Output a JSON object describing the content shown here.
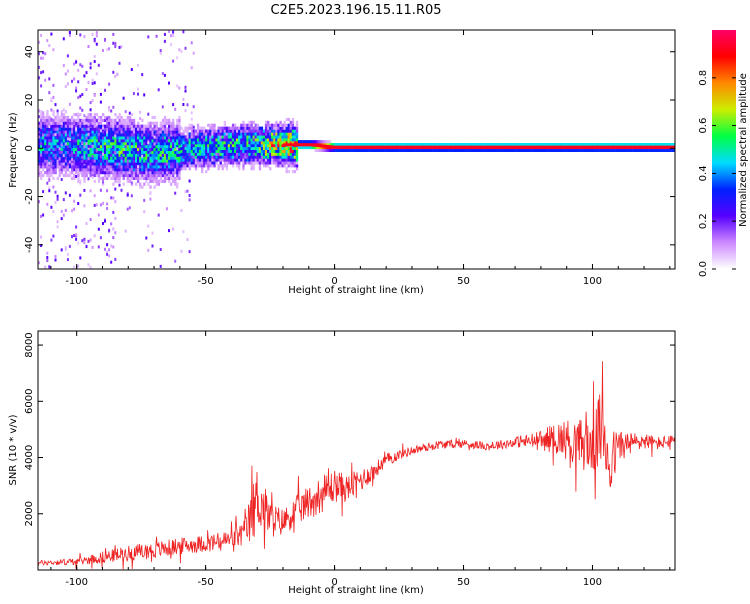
{
  "title": "C2E5.2023.196.15.11.R05",
  "chart_data": [
    {
      "type": "heatmap",
      "xlabel": "Height of straight line (km)",
      "ylabel": "Frequency (Hz)",
      "xlim": [
        -115,
        132
      ],
      "ylim": [
        -50,
        49
      ],
      "xticks": [
        "-100",
        "-50",
        "0",
        "50",
        "100"
      ],
      "xtick_values": [
        -100,
        -50,
        0,
        50,
        100
      ],
      "yticks": [
        "-40",
        "-20",
        "0",
        "20",
        "40"
      ],
      "ytick_values": [
        -40,
        -20,
        0,
        20,
        40
      ],
      "grid": false,
      "colorbar": {
        "label": "Normalized spectral amplitude",
        "range": [
          0,
          1
        ],
        "ticks": [
          "0.0",
          "0.2",
          "0.4",
          "0.6",
          "0.8"
        ],
        "tick_values": [
          0.0,
          0.2,
          0.4,
          0.6,
          0.8
        ],
        "colormap": [
          "#ffffff",
          "#cc88ff",
          "#5500ff",
          "#0022ff",
          "#00ddff",
          "#00ff44",
          "#ccee00",
          "#ff8800",
          "#ff0000",
          "#ff0066"
        ]
      },
      "ridge": [
        {
          "x": -110,
          "y": 1.5,
          "amplitude": 0.5
        },
        {
          "x": -90,
          "y": 0.5,
          "amplitude": 0.6
        },
        {
          "x": -70,
          "y": -2.0,
          "amplitude": 0.6
        },
        {
          "x": -50,
          "y": 0.5,
          "amplitude": 0.6
        },
        {
          "x": -35,
          "y": 1.5,
          "amplitude": 0.65
        },
        {
          "x": -20,
          "y": 1.5,
          "amplitude": 0.95
        },
        {
          "x": -10,
          "y": 1.5,
          "amplitude": 1.0
        },
        {
          "x": 0,
          "y": 0.5,
          "amplitude": 1.0
        },
        {
          "x": 50,
          "y": 0.5,
          "amplitude": 0.98
        },
        {
          "x": 100,
          "y": 0.5,
          "amplitude": 1.0
        },
        {
          "x": 130,
          "y": 0.5,
          "amplitude": 1.0
        }
      ]
    },
    {
      "type": "line",
      "xlabel": "Height of straight line (km)",
      "ylabel": "SNR (10 * v/v)",
      "xlim": [
        -115,
        132
      ],
      "ylim": [
        0,
        8500
      ],
      "xticks": [
        "-100",
        "-50",
        "0",
        "50",
        "100"
      ],
      "xtick_values": [
        -100,
        -50,
        0,
        50,
        100
      ],
      "yticks": [
        "2000",
        "4000",
        "6000",
        "8000"
      ],
      "ytick_values": [
        2000,
        4000,
        6000,
        8000
      ],
      "grid": false,
      "series": [
        {
          "color": "#ee2222",
          "x": [
            -115,
            -100,
            -90,
            -80,
            -70,
            -60,
            -50,
            -45,
            -40,
            -35,
            -32,
            -30,
            -28,
            -25,
            -20,
            -15,
            -10,
            -5,
            0,
            5,
            10,
            15,
            20,
            25,
            30,
            40,
            50,
            60,
            70,
            80,
            85,
            90,
            95,
            100,
            103,
            105,
            107,
            110,
            115,
            120,
            125,
            132
          ],
          "values": [
            250,
            300,
            450,
            600,
            700,
            850,
            950,
            1000,
            1100,
            1300,
            1900,
            2600,
            2300,
            1800,
            1700,
            2100,
            2400,
            2700,
            3000,
            2900,
            3200,
            3500,
            3900,
            4100,
            4250,
            4450,
            4500,
            4400,
            4550,
            4600,
            4700,
            4650,
            4500,
            4400,
            5000,
            4600,
            3800,
            4400,
            4500,
            4600,
            4500,
            4600
          ],
          "spread": [
            150,
            200,
            350,
            450,
            500,
            500,
            500,
            550,
            600,
            800,
            1700,
            1900,
            1600,
            1100,
            800,
            900,
            1000,
            1100,
            1000,
            800,
            700,
            500,
            400,
            300,
            250,
            250,
            250,
            250,
            300,
            600,
            900,
            1200,
            1500,
            1700,
            2200,
            2500,
            2000,
            1000,
            700,
            500,
            400,
            350
          ]
        }
      ]
    }
  ]
}
